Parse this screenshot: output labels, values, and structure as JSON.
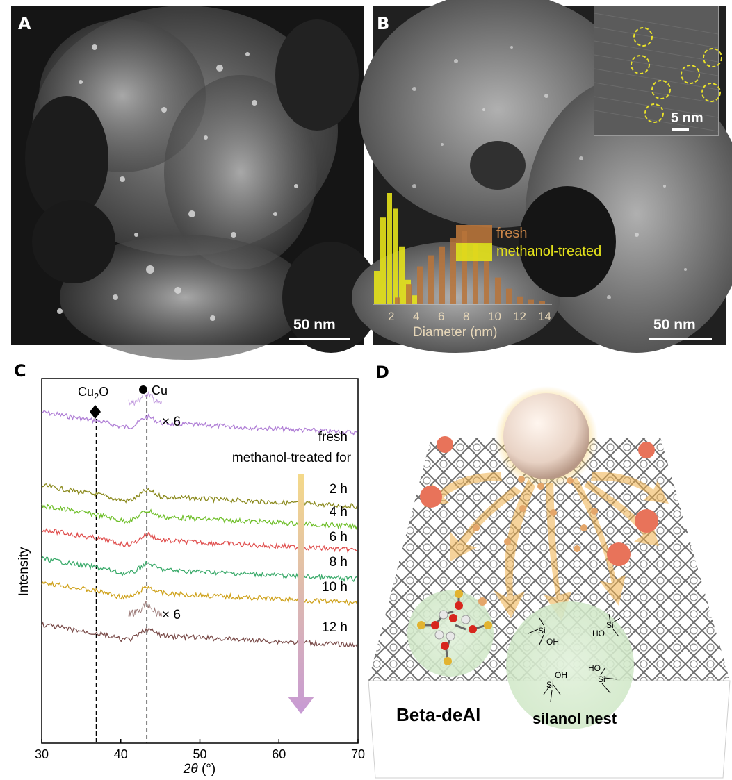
{
  "panelA": {
    "letter": "A",
    "scalebar": "50 nm"
  },
  "panelB": {
    "letter": "B",
    "scalebar": "50 nm",
    "inset_scalebar": "5 nm",
    "histogram": {
      "xlabel": "Diameter (nm)",
      "xticks": [
        "2",
        "4",
        "6",
        "8",
        "10",
        "12",
        "14"
      ],
      "legend": {
        "fresh": "fresh",
        "methanol": "methanol-treated"
      },
      "colors": {
        "fresh": "#b8743a",
        "methanol": "#e4e21a"
      }
    }
  },
  "panelC": {
    "letter": "C",
    "ylabel": "Intensity",
    "xlabel_sym": "2θ",
    "xlabel_unit": " (°)",
    "markers": {
      "cu2o_main": "Cu",
      "cu2o_sub": "2",
      "cu2o_tail": "O",
      "cu": "Cu"
    },
    "magnification": "× 6",
    "subtitle": "methanol-treated for",
    "colors": [
      "#b07fd6",
      "#8b8a1e",
      "#6fbf2a",
      "#e0504f",
      "#3aaa6a",
      "#cfa21c",
      "#7a4c4a"
    ]
  },
  "chart_data": {
    "type": "line",
    "title": "",
    "xlabel": "2θ (°)",
    "ylabel": "Intensity",
    "xlim": [
      30,
      70
    ],
    "xticks": [
      30,
      40,
      50,
      60,
      70
    ],
    "reference_lines": [
      {
        "name": "Cu2O",
        "x": 36.9
      },
      {
        "name": "Cu",
        "x": 43.3
      }
    ],
    "series": [
      {
        "name": "fresh",
        "color": "#b07fd6",
        "peak_x": 43.3
      },
      {
        "name": "2 h",
        "color": "#8b8a1e",
        "peak_x": 43.3
      },
      {
        "name": "4 h",
        "color": "#6fbf2a",
        "peak_x": 43.3
      },
      {
        "name": "6 h",
        "color": "#e0504f",
        "peak_x": 43.3
      },
      {
        "name": "8 h",
        "color": "#3aaa6a",
        "peak_x": 43.3
      },
      {
        "name": "10 h",
        "color": "#cfa21c",
        "peak_x": 43.3
      },
      {
        "name": "12 h",
        "color": "#7a4c4a",
        "peak_x": 43.3
      }
    ]
  },
  "panelD": {
    "letter": "D",
    "label_left": "Beta-deAl",
    "label_right": "silanol nest",
    "silanol_groups": [
      "Si",
      "OH",
      "HO",
      "Si",
      "OH",
      "Si",
      "HO",
      "Si"
    ]
  }
}
